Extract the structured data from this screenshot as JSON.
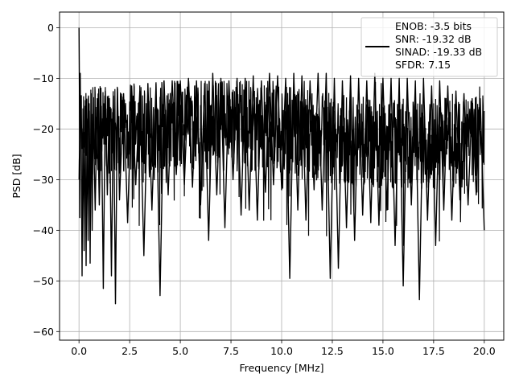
{
  "chart_data": {
    "type": "line",
    "title": "",
    "xlabel": "Frequency [MHz]",
    "ylabel": "PSD [dB]",
    "xlim": [
      -0.96,
      20.96
    ],
    "ylim": [
      -61.7,
      3.1
    ],
    "x_ticks": [
      0.0,
      2.5,
      5.0,
      7.5,
      10.0,
      12.5,
      15.0,
      17.5,
      20.0
    ],
    "x_tick_labels": [
      "0.0",
      "2.5",
      "5.0",
      "7.5",
      "10.0",
      "12.5",
      "15.0",
      "17.5",
      "20.0"
    ],
    "y_ticks": [
      0,
      -10,
      -20,
      -30,
      -40,
      -50,
      -60
    ],
    "y_tick_labels": [
      "0",
      "−10",
      "−20",
      "−30",
      "−40",
      "−50",
      "−60"
    ],
    "grid": true,
    "legend_position": "top-right",
    "series": [
      {
        "color": "#000000",
        "legend_lines": [
          "ENOB: -3.5 bits",
          "SNR: -19.32 dB",
          "SINAD: -19.33 dB",
          "SFDR: 7.15"
        ],
        "x": [
          0.0,
          0.02,
          0.04,
          0.06,
          0.08,
          0.1,
          0.15,
          0.2,
          0.25,
          0.3,
          0.35,
          0.4,
          0.45,
          0.5,
          0.55,
          0.6,
          0.65,
          0.7,
          0.8,
          0.9,
          1.0,
          1.1,
          1.2,
          1.3,
          1.4,
          1.5,
          1.6,
          1.7,
          1.8,
          1.9,
          2.0,
          2.2,
          2.4,
          2.6,
          2.8,
          3.0,
          3.2,
          3.4,
          3.6,
          3.8,
          4.0,
          4.2,
          4.4,
          4.6,
          4.8,
          5.0,
          5.2,
          5.4,
          5.6,
          5.8,
          6.0,
          6.2,
          6.4,
          6.6,
          6.8,
          7.0,
          7.2,
          7.4,
          7.6,
          7.8,
          8.0,
          8.2,
          8.4,
          8.6,
          8.8,
          9.0,
          9.2,
          9.4,
          9.6,
          9.8,
          10.0,
          10.2,
          10.4,
          10.6,
          10.8,
          11.0,
          11.2,
          11.4,
          11.6,
          11.8,
          12.0,
          12.2,
          12.4,
          12.6,
          12.8,
          13.0,
          13.2,
          13.4,
          13.6,
          13.8,
          14.0,
          14.2,
          14.4,
          14.6,
          14.8,
          15.0,
          15.2,
          15.4,
          15.6,
          15.8,
          16.0,
          16.2,
          16.4,
          16.6,
          16.8,
          17.0,
          17.2,
          17.4,
          17.6,
          17.8,
          18.0,
          18.2,
          18.4,
          18.6,
          18.8,
          19.0,
          19.2,
          19.4,
          19.6,
          19.8,
          20.0
        ],
        "y": [
          0.0,
          -12.0,
          -37.5,
          -9.0,
          -20.0,
          -14.5,
          -49.0,
          -16.0,
          -44.0,
          -15.5,
          -47.0,
          -18.0,
          -42.0,
          -15.0,
          -46.5,
          -13.0,
          -40.0,
          -16.0,
          -36.0,
          -14.0,
          -35.0,
          -15.5,
          -51.5,
          -12.5,
          -33.0,
          -14.0,
          -49.0,
          -13.5,
          -54.5,
          -12.0,
          -34.0,
          -13.0,
          -38.5,
          -11.5,
          -31.0,
          -12.5,
          -45.0,
          -11.0,
          -36.0,
          -11.0,
          -52.9,
          -10.5,
          -33.0,
          -10.5,
          -29.0,
          -10.5,
          -31.0,
          -10.0,
          -31.5,
          -10.5,
          -35.0,
          -11.0,
          -42.0,
          -9.0,
          -33.0,
          -10.0,
          -39.5,
          -10.5,
          -30.0,
          -10.0,
          -37.0,
          -10.0,
          -36.0,
          -9.5,
          -38.0,
          -10.5,
          -32.5,
          -9.0,
          -31.0,
          -9.5,
          -32.0,
          -10.0,
          -49.5,
          -9.0,
          -36.0,
          -9.5,
          -38.0,
          -10.5,
          -32.0,
          -9.0,
          -36.0,
          -9.0,
          -49.5,
          -10.0,
          -47.5,
          -10.5,
          -39.5,
          -9.5,
          -42.0,
          -10.0,
          -37.0,
          -10.5,
          -38.5,
          -9.0,
          -39.0,
          -10.0,
          -36.0,
          -10.0,
          -43.0,
          -10.0,
          -51.0,
          -10.0,
          -35.0,
          -10.5,
          -53.7,
          -10.0,
          -38.0,
          -11.5,
          -43.0,
          -10.5,
          -36.0,
          -11.5,
          -38.0,
          -12.5,
          -34.0,
          -13.0,
          -35.0,
          -14.0,
          -33.0,
          -14.0,
          -40.0
        ]
      }
    ]
  }
}
